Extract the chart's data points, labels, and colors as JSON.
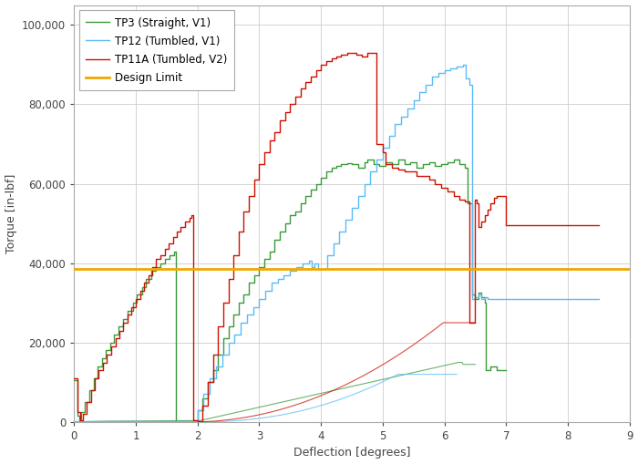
{
  "title": "",
  "xlabel": "Deflection [degrees]",
  "ylabel": "Torque [in-lbf]",
  "xlim": [
    0,
    9
  ],
  "ylim": [
    0,
    105000
  ],
  "yticks": [
    0,
    20000,
    40000,
    60000,
    80000,
    100000
  ],
  "xticks": [
    0,
    1,
    2,
    3,
    4,
    5,
    6,
    7,
    8,
    9
  ],
  "design_limit": 38500,
  "design_limit_color": "#F0A800",
  "tp3_color": "#3A9A3A",
  "tp12_color": "#5BBCF5",
  "tp11a_color": "#CC1100",
  "background_color": "#FFFFFF",
  "plot_bg_color": "#FFFFFF",
  "grid_color": "#CCCCCC",
  "legend_labels": [
    "TP3 (Straight, V1)",
    "TP12 (Tumbled, V1)",
    "TP11A (Tumbled, V2)",
    "Design Limit"
  ]
}
